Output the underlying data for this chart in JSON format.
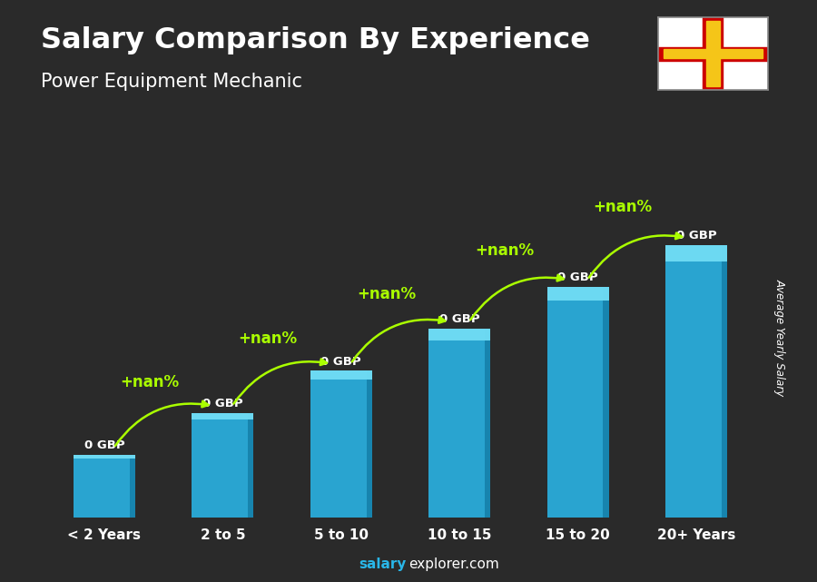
{
  "title_main": "Salary Comparison By Experience",
  "title_sub": "Power Equipment Mechanic",
  "categories": [
    "< 2 Years",
    "2 to 5",
    "5 to 10",
    "10 to 15",
    "15 to 20",
    "20+ Years"
  ],
  "values": [
    1.5,
    2.5,
    3.5,
    4.5,
    5.5,
    6.5
  ],
  "bar_color_face": "#29b6e8",
  "bar_color_dark": "#1580aa",
  "bar_color_top": "#70ddf5",
  "salary_labels": [
    "0 GBP",
    "0 GBP",
    "0 GBP",
    "0 GBP",
    "0 GBP",
    "0 GBP"
  ],
  "change_labels": [
    "+nan%",
    "+nan%",
    "+nan%",
    "+nan%",
    "+nan%"
  ],
  "ylabel": "Average Yearly Salary",
  "footer_salary": "salary",
  "footer_rest": "explorer.com",
  "bg_color": "#2a2a2a",
  "title_color": "#ffffff",
  "label_color": "#ffffff",
  "change_color": "#aaff00",
  "arrow_color": "#aaff00",
  "ylim_max": 9.0,
  "bar_alpha": 0.88
}
